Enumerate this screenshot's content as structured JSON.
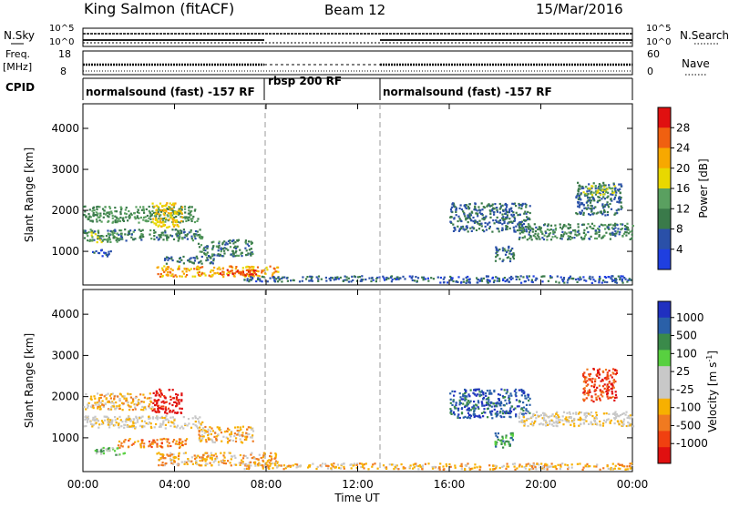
{
  "header": {
    "station": "King Salmon (fitACF)",
    "beam": "Beam 12",
    "date": "15/Mar/2016"
  },
  "status_panels": {
    "nsky_label": "N.Sky",
    "nsearch_label": "N.Search",
    "nsky_ticks": [
      "10^5",
      "10^0"
    ],
    "nsearch_ticks": [
      "10^5",
      "10^0"
    ],
    "freq_label": "Freq.",
    "freq_unit": "[MHz]",
    "freq_ticks": [
      "18",
      "8"
    ],
    "nave_label": "Nave",
    "nave_ticks": [
      "60",
      "0"
    ],
    "cpid_label": "CPID",
    "cpid_segments": [
      {
        "label": "normalsound (fast) -157 RF",
        "start": 0,
        "end": 8
      },
      {
        "label": "rbsp 200 RF",
        "start": 8,
        "end": 13
      },
      {
        "label": "normalsound (fast) -157 RF",
        "start": 13,
        "end": 24
      }
    ]
  },
  "colors": {
    "power": [
      "#1f3fe0",
      "#2a50a8",
      "#3a7a4a",
      "#5aa060",
      "#e8d800",
      "#f7a800",
      "#f06010",
      "#e01010"
    ],
    "velocity": [
      "#e01010",
      "#f04010",
      "#f07a20",
      "#f7b000",
      "#c8c8c8",
      "#c8c8c8",
      "#58d040",
      "#3a8a4a",
      "#2a60a8",
      "#2030c0"
    ]
  },
  "chart_data": [
    {
      "type": "heatmap",
      "name": "power",
      "xlabel": "",
      "ylabel": "Slant Range [km]",
      "xlim": [
        0,
        24
      ],
      "ylim": [
        180,
        4600
      ],
      "xticks": [
        "00:00",
        "04:00",
        "08:00",
        "12:00",
        "16:00",
        "20:00",
        "00:00"
      ],
      "yticks": [
        1000,
        2000,
        3000,
        4000
      ],
      "colorbar_label": "Power [dB]",
      "colorbar_ticks": [
        "4",
        "8",
        "12",
        "16",
        "20",
        "24",
        "28"
      ],
      "colorbar_range": [
        0,
        32
      ],
      "regions": [
        {
          "t": [
            0.0,
            5.2
          ],
          "r": [
            1280,
            1560
          ],
          "level": 10
        },
        {
          "t": [
            0.0,
            5.0
          ],
          "r": [
            1720,
            2120
          ],
          "level": 12
        },
        {
          "t": [
            3.0,
            4.3
          ],
          "r": [
            1600,
            2200
          ],
          "level": 20
        },
        {
          "t": [
            0.2,
            1.5
          ],
          "r": [
            1240,
            1480
          ],
          "level": 14
        },
        {
          "t": [
            3.5,
            5.8
          ],
          "r": [
            720,
            900
          ],
          "level": 8
        },
        {
          "t": [
            0.3,
            1.2
          ],
          "r": [
            900,
            1060
          ],
          "level": 6
        },
        {
          "t": [
            3.2,
            8.5
          ],
          "r": [
            400,
            660
          ],
          "level": 22
        },
        {
          "t": [
            5.8,
            7.6
          ],
          "r": [
            440,
            580
          ],
          "level": 28
        },
        {
          "t": [
            5.0,
            7.4
          ],
          "r": [
            900,
            1300
          ],
          "level": 10
        },
        {
          "t": [
            7.0,
            15.5
          ],
          "r": [
            280,
            420
          ],
          "level": 7
        },
        {
          "t": [
            17.9,
            18.8
          ],
          "r": [
            780,
            1140
          ],
          "level": 8
        },
        {
          "t": [
            16.0,
            19.5
          ],
          "r": [
            1500,
            2200
          ],
          "level": 8
        },
        {
          "t": [
            19.0,
            24.0
          ],
          "r": [
            1300,
            1700
          ],
          "level": 10
        },
        {
          "t": [
            21.5,
            23.5
          ],
          "r": [
            1900,
            2700
          ],
          "level": 8
        },
        {
          "t": [
            21.8,
            23.2
          ],
          "r": [
            2400,
            2650
          ],
          "level": 16
        },
        {
          "t": [
            15.5,
            24.0
          ],
          "r": [
            250,
            420
          ],
          "level": 6
        }
      ]
    },
    {
      "type": "heatmap",
      "name": "velocity",
      "xlabel": "Time UT",
      "ylabel": "Slant Range [km]",
      "xlim": [
        0,
        24
      ],
      "ylim": [
        180,
        4600
      ],
      "xticks": [
        "00:00",
        "04:00",
        "08:00",
        "12:00",
        "16:00",
        "20:00",
        "00:00"
      ],
      "yticks": [
        1000,
        2000,
        3000,
        4000
      ],
      "colorbar_label": "Velocity [m s^-1]",
      "colorbar_ticks": [
        "1000",
        "500",
        "100",
        "25",
        "-25",
        "-100",
        "-500",
        "-1000"
      ],
      "regions": [
        {
          "t": [
            0.0,
            5.2
          ],
          "r": [
            1250,
            1550
          ],
          "bin": 4
        },
        {
          "t": [
            3.0,
            4.3
          ],
          "r": [
            1600,
            2200
          ],
          "bin": 0
        },
        {
          "t": [
            0.0,
            3.0
          ],
          "r": [
            1700,
            2100
          ],
          "bin": 3
        },
        {
          "t": [
            0.5,
            1.8
          ],
          "r": [
            600,
            780
          ],
          "bin": 6
        },
        {
          "t": [
            1.5,
            4.5
          ],
          "r": [
            780,
            1000
          ],
          "bin": 2
        },
        {
          "t": [
            3.2,
            8.5
          ],
          "r": [
            350,
            660
          ],
          "bin": 3
        },
        {
          "t": [
            5.0,
            7.4
          ],
          "r": [
            900,
            1300
          ],
          "bin": 3
        },
        {
          "t": [
            7.0,
            15.5
          ],
          "r": [
            260,
            400
          ],
          "bin": 3
        },
        {
          "t": [
            17.9,
            18.8
          ],
          "r": [
            780,
            1140
          ],
          "bin": 7
        },
        {
          "t": [
            16.0,
            19.5
          ],
          "r": [
            1500,
            2200
          ],
          "bin": 8
        },
        {
          "t": [
            19.0,
            24.0
          ],
          "r": [
            1300,
            1650
          ],
          "bin": 4
        },
        {
          "t": [
            21.8,
            23.3
          ],
          "r": [
            1900,
            2700
          ],
          "bin": 1
        },
        {
          "t": [
            15.5,
            24.0
          ],
          "r": [
            250,
            400
          ],
          "bin": 3
        }
      ]
    }
  ]
}
